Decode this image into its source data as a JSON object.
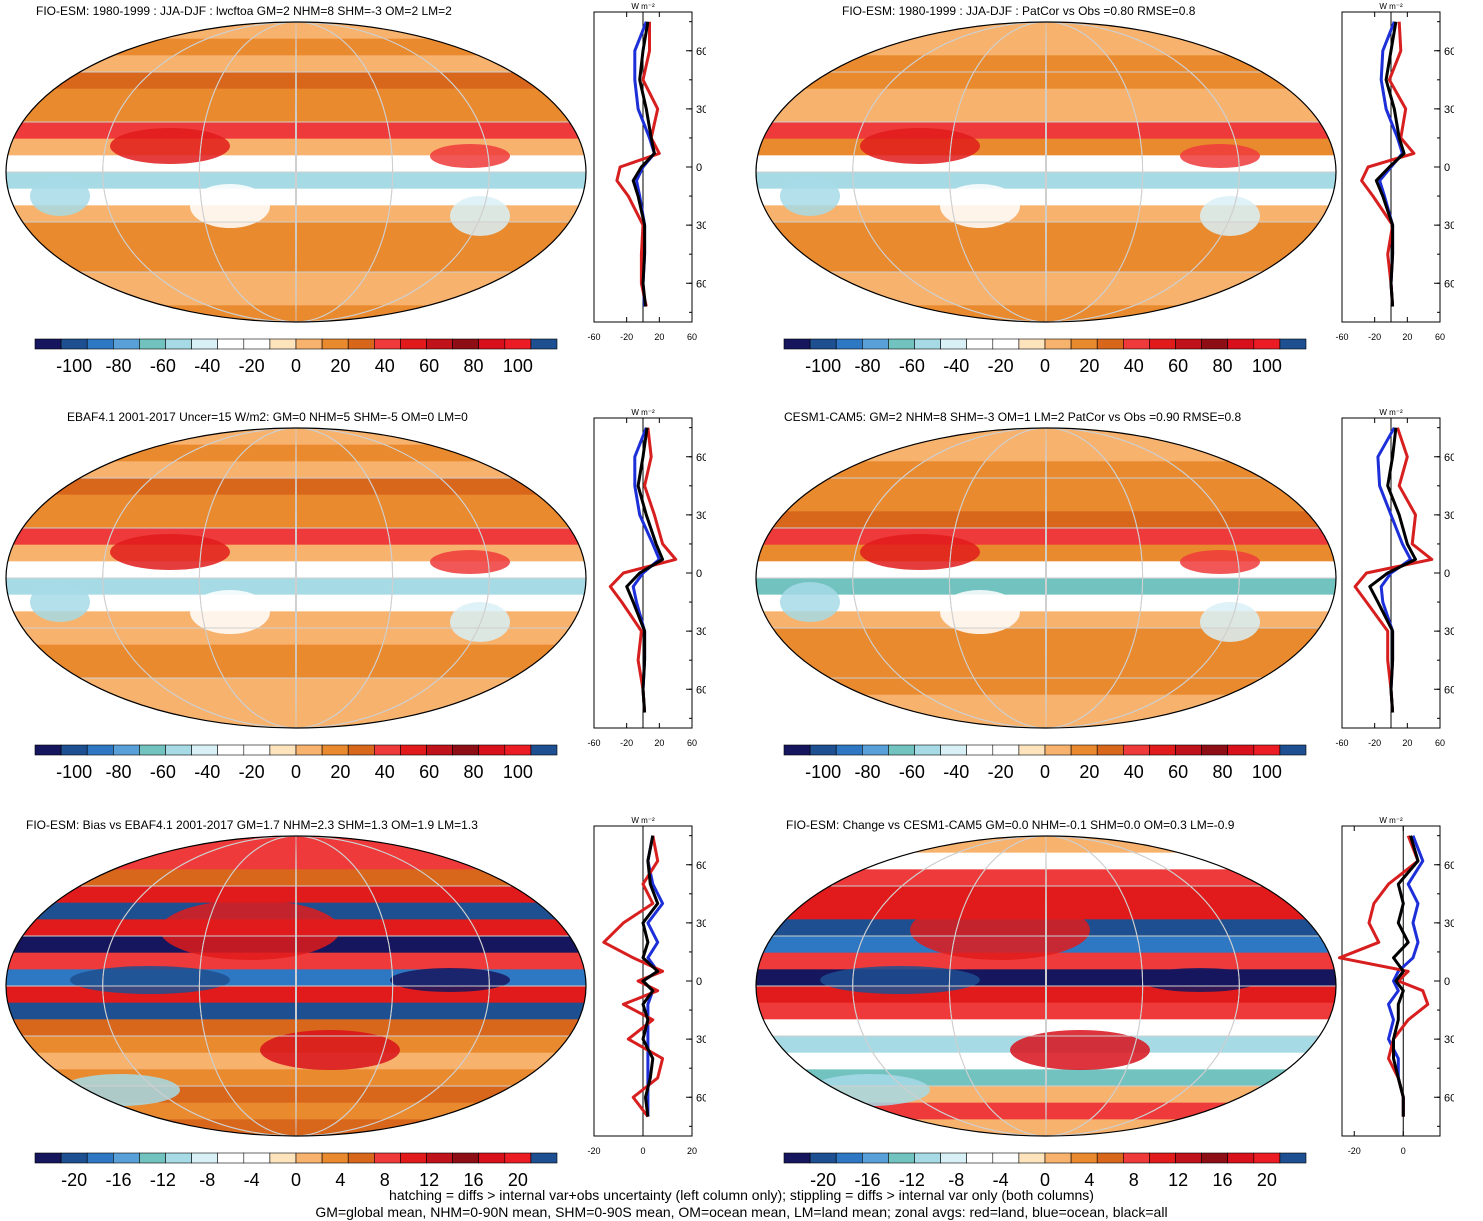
{
  "colors": {
    "scale": [
      "#16165e",
      "#1d4f91",
      "#2e77c2",
      "#5aa0d8",
      "#72c3c0",
      "#a6dbe6",
      "#d8f0f6",
      "#ffffff",
      "#ffffff",
      "#fde4bd",
      "#f7b26e",
      "#ea8a2e",
      "#d8671c",
      "#ee3a3a",
      "#e11b1b",
      "#c0121b",
      "#8e0e15",
      "#d8101b",
      "#ec1c24",
      "#1d4f91"
    ],
    "land": "#d81f1f",
    "ocean": "#1d2fd8",
    "all": "#000000"
  },
  "footer": {
    "line1": "hatching = diffs > internal var+obs uncertainty (left column only); stippling = diffs > internal var only (both columns)",
    "line2": "GM=global mean, NHM=0-90N mean, SHM=0-90S mean, OM=ocean mean, LM=land mean; zonal avgs: red=land, blue=ocean, black=all"
  },
  "chart_data": [
    {
      "type": "heatmap",
      "title": "FIO-ESM: 1980-1999 : JJA-DJF : lwcftoa GM=2 NHM=8 SHM=-3 OM=2 LM=2",
      "colorbar_ticks": [
        "-100",
        "-80",
        "-60",
        "-40",
        "-20",
        "0",
        "20",
        "40",
        "60",
        "80",
        "100"
      ],
      "zonal": {
        "unit": "W m⁻²",
        "lat_ticks": [
          "60N",
          "30N",
          "0",
          "30S",
          "60S"
        ],
        "x_ticks": [
          "-60",
          "-20",
          "20",
          "60"
        ],
        "xlim": [
          -60,
          60
        ],
        "lat": [
          75,
          60,
          45,
          30,
          15,
          7,
          0,
          -7,
          -15,
          -30,
          -45,
          -60,
          -72
        ],
        "land": [
          8,
          8,
          0,
          18,
          10,
          20,
          -28,
          -32,
          -18,
          0,
          -2,
          -2,
          4
        ],
        "ocean": [
          4,
          -10,
          -10,
          -6,
          8,
          14,
          0,
          -8,
          -4,
          2,
          2,
          0,
          2
        ],
        "all": [
          6,
          0,
          -4,
          4,
          10,
          14,
          -2,
          -12,
          -6,
          2,
          2,
          0,
          3
        ]
      }
    },
    {
      "type": "heatmap",
      "title": "FIO-ESM: 1980-1999 : JJA-DJF : PatCor vs Obs =0.80 RMSE=0.8",
      "colorbar_ticks": [
        "-100",
        "-80",
        "-60",
        "-40",
        "-20",
        "0",
        "20",
        "40",
        "60",
        "80",
        "100"
      ],
      "zonal": {
        "unit": "W m⁻²",
        "lat_ticks": [
          "60N",
          "30N",
          "0",
          "30S",
          "60S"
        ],
        "x_ticks": [
          "-60",
          "-20",
          "20",
          "60"
        ],
        "xlim": [
          -60,
          60
        ],
        "lat": [
          75,
          60,
          45,
          30,
          15,
          7,
          0,
          -7,
          -15,
          -30,
          -45,
          -60,
          -72
        ],
        "land": [
          10,
          12,
          -2,
          18,
          12,
          28,
          -28,
          -36,
          -22,
          2,
          -4,
          0,
          2
        ],
        "ocean": [
          4,
          -10,
          -12,
          -6,
          8,
          14,
          0,
          -14,
          -8,
          2,
          2,
          0,
          2
        ],
        "all": [
          6,
          0,
          -6,
          4,
          10,
          16,
          -2,
          -18,
          -10,
          2,
          2,
          0,
          2
        ]
      }
    },
    {
      "type": "heatmap",
      "title": "EBAF4.1 2001-2017 Uncer=15 W/m2: GM=0 NHM=5 SHM=-5 OM=0 LM=0",
      "colorbar_ticks": [
        "-100",
        "-80",
        "-60",
        "-40",
        "-20",
        "0",
        "20",
        "40",
        "60",
        "80",
        "100"
      ],
      "zonal": {
        "unit": "W m⁻²",
        "lat_ticks": [
          "60N",
          "30N",
          "0",
          "30S",
          "60S"
        ],
        "x_ticks": [
          "-60",
          "-20",
          "20",
          "60"
        ],
        "xlim": [
          -60,
          60
        ],
        "lat": [
          75,
          60,
          45,
          30,
          15,
          7,
          0,
          -7,
          -15,
          -30,
          -45,
          -60,
          -72
        ],
        "land": [
          6,
          10,
          2,
          14,
          24,
          40,
          -24,
          -40,
          -26,
          -2,
          -6,
          0,
          2
        ],
        "ocean": [
          4,
          -10,
          -10,
          -4,
          12,
          20,
          0,
          -12,
          -8,
          2,
          2,
          0,
          2
        ],
        "all": [
          5,
          0,
          -6,
          4,
          16,
          24,
          -4,
          -20,
          -12,
          2,
          2,
          0,
          2
        ]
      }
    },
    {
      "type": "heatmap",
      "title": "CESM1-CAM5: GM=2 NHM=8 SHM=-3 OM=1 LM=2 PatCor vs Obs =0.90 RMSE=0.8",
      "colorbar_ticks": [
        "-100",
        "-80",
        "-60",
        "-40",
        "-20",
        "0",
        "20",
        "40",
        "60",
        "80",
        "100"
      ],
      "zonal": {
        "unit": "W m⁻²",
        "lat_ticks": [
          "60N",
          "30N",
          "0",
          "30S",
          "60S"
        ],
        "x_ticks": [
          "-60",
          "-20",
          "20",
          "60"
        ],
        "xlim": [
          -60,
          60
        ],
        "lat": [
          75,
          60,
          45,
          30,
          15,
          7,
          0,
          -7,
          -15,
          -30,
          -45,
          -60,
          -72
        ],
        "land": [
          8,
          20,
          10,
          30,
          26,
          50,
          -30,
          -44,
          -30,
          -4,
          -4,
          0,
          2
        ],
        "ocean": [
          4,
          -16,
          -14,
          0,
          14,
          24,
          0,
          -12,
          -10,
          2,
          2,
          0,
          2
        ],
        "all": [
          6,
          2,
          -4,
          10,
          20,
          30,
          -4,
          -26,
          -16,
          2,
          2,
          0,
          2
        ]
      }
    },
    {
      "type": "heatmap",
      "title": "FIO-ESM: Bias vs EBAF4.1 2001-2017 GM=1.7 NHM=2.3 SHM=1.3 OM=1.9 LM=1.3",
      "colorbar_ticks": [
        "-20",
        "-16",
        "-12",
        "-8",
        "-4",
        "0",
        "4",
        "8",
        "12",
        "16",
        "20"
      ],
      "zonal": {
        "unit": "W m⁻²",
        "lat_ticks": [
          "60N",
          "30N",
          "0",
          "30S",
          "60S"
        ],
        "x_ticks": [
          "-20",
          "0",
          "20"
        ],
        "xlim": [
          -20,
          20
        ],
        "lat": [
          75,
          62,
          50,
          40,
          30,
          20,
          12,
          5,
          0,
          -5,
          -12,
          -20,
          -30,
          -40,
          -50,
          -60,
          -70
        ],
        "land": [
          4,
          6,
          0,
          4,
          -8,
          -16,
          -4,
          8,
          -2,
          6,
          -8,
          4,
          -6,
          8,
          6,
          -4,
          2
        ],
        "ocean": [
          4,
          2,
          4,
          8,
          2,
          6,
          2,
          6,
          0,
          4,
          2,
          2,
          2,
          2,
          2,
          2,
          2
        ],
        "all": [
          4,
          2,
          3,
          6,
          0,
          2,
          0,
          6,
          0,
          4,
          0,
          2,
          0,
          4,
          3,
          1,
          2
        ]
      }
    },
    {
      "type": "heatmap",
      "title": "FIO-ESM: Change vs CESM1-CAM5 GM=0.0 NHM=-0.1 SHM=0.0 OM=0.3 LM=-0.9",
      "colorbar_ticks": [
        "-20",
        "-16",
        "-12",
        "-8",
        "-4",
        "0",
        "4",
        "8",
        "12",
        "16",
        "20"
      ],
      "zonal": {
        "unit": "W m⁻²",
        "lat_ticks": [
          "60N",
          "30N",
          "0",
          "30S",
          "60S"
        ],
        "x_ticks": [
          "-20",
          "0"
        ],
        "xlim": [
          -25,
          15
        ],
        "lat": [
          75,
          62,
          50,
          40,
          30,
          20,
          12,
          5,
          0,
          -5,
          -12,
          -20,
          -30,
          -40,
          -50,
          -60,
          -70
        ],
        "land": [
          2,
          6,
          -6,
          -12,
          -14,
          -10,
          -26,
          2,
          -2,
          8,
          10,
          2,
          -4,
          -6,
          -2,
          0,
          0
        ],
        "ocean": [
          4,
          8,
          2,
          6,
          4,
          6,
          4,
          -2,
          -4,
          -2,
          -6,
          -4,
          -6,
          -2,
          -2,
          0,
          0
        ],
        "all": [
          3,
          6,
          -2,
          0,
          -2,
          2,
          -4,
          0,
          -3,
          0,
          -2,
          -2,
          -4,
          -4,
          -2,
          0,
          0
        ]
      }
    }
  ]
}
